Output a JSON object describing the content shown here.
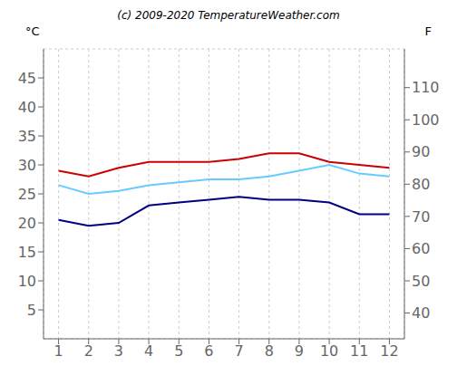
{
  "chart_data": {
    "type": "line",
    "title": "(c) 2009-2020 TemperatureWeather.com",
    "ylabel": "°C",
    "y2label": "F",
    "x": [
      1,
      2,
      3,
      4,
      5,
      6,
      7,
      8,
      9,
      10,
      11,
      12
    ],
    "series": [
      {
        "color": "#cc0000",
        "values": [
          29,
          28,
          29.5,
          30.5,
          30.5,
          30.5,
          31,
          32,
          32,
          30.5,
          30,
          29.5
        ]
      },
      {
        "color": "#66ccff",
        "values": [
          26.5,
          25,
          25.5,
          26.5,
          27,
          27.5,
          27.5,
          28,
          29,
          30,
          28.5,
          28
        ]
      },
      {
        "color": "#000080",
        "values": [
          20.5,
          19.5,
          20,
          23,
          23.5,
          24,
          24.5,
          24,
          24,
          23.5,
          21.5,
          21.5
        ]
      }
    ],
    "xlim": [
      0.5,
      12.5
    ],
    "xticks": [
      1,
      2,
      3,
      4,
      5,
      6,
      7,
      8,
      9,
      10,
      11,
      12
    ],
    "ylim": [
      0,
      50
    ],
    "yticks": [
      5,
      10,
      15,
      20,
      25,
      30,
      35,
      40,
      45
    ],
    "y2lim": [
      32,
      122
    ],
    "y2ticks": [
      40,
      50,
      60,
      70,
      80,
      90,
      100,
      110
    ],
    "grid": true
  }
}
